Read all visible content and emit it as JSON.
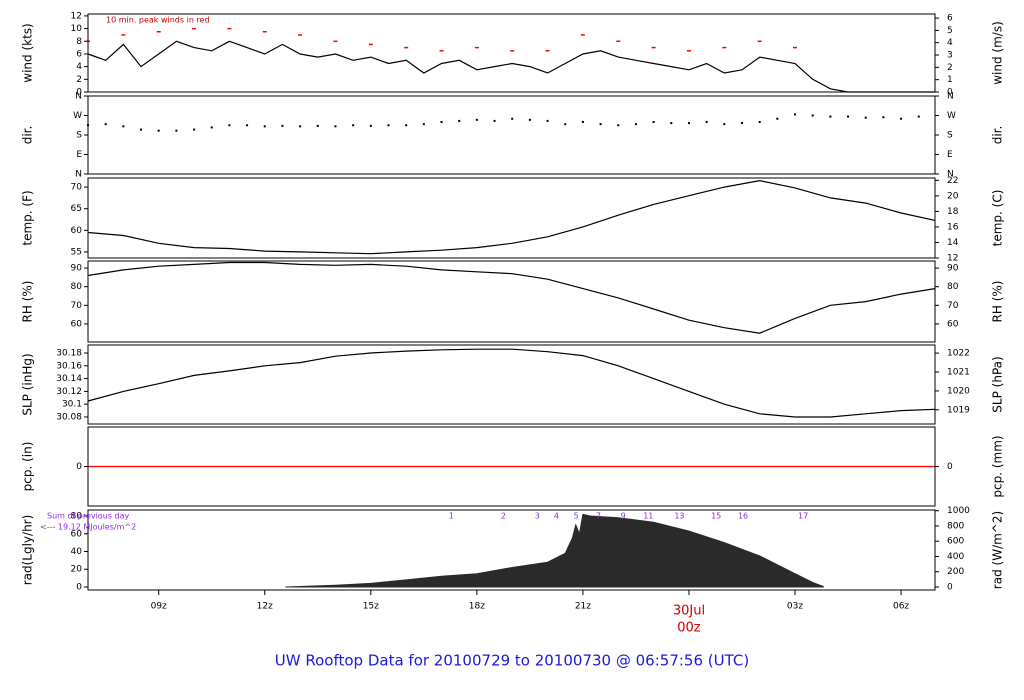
{
  "x_axis": {
    "xlim": [
      7,
      30.96
    ],
    "xticks": [
      {
        "value": 9,
        "label": "09z"
      },
      {
        "value": 12,
        "label": "12z"
      },
      {
        "value": 15,
        "label": "15z"
      },
      {
        "value": 18,
        "label": "18z"
      },
      {
        "value": 21,
        "label": "21z"
      },
      {
        "value": 27,
        "label": "03z"
      },
      {
        "value": 30,
        "label": "06z"
      }
    ],
    "day_marker": {
      "x": 24,
      "date": "30Jul",
      "time": "00z"
    }
  },
  "footer_title": "UW Rooftop Data for 20100729  to  20100730 @ 06:57:56  (UTC)",
  "chart_data": [
    {
      "type": "line",
      "ylabel": "wind (kts)",
      "y2label": "wind (m/s)",
      "ylim": [
        0,
        12.3
      ],
      "yticks": [
        0,
        2,
        4,
        6,
        8,
        10,
        12
      ],
      "y2lim": [
        0,
        6.33
      ],
      "y2ticks": [
        0,
        1,
        2,
        3,
        4,
        5,
        6
      ],
      "annotation": "10 min. peak winds in red",
      "series": [
        {
          "style": "line",
          "color": "#000000",
          "x": [
            7,
            7.5,
            8,
            8.5,
            9,
            9.5,
            10,
            10.5,
            11,
            11.5,
            12,
            12.5,
            13,
            13.5,
            14,
            14.5,
            15,
            15.5,
            16,
            16.5,
            17,
            17.5,
            18,
            18.5,
            19,
            19.5,
            20,
            20.5,
            21,
            21.5,
            22,
            22.5,
            23,
            23.5,
            24,
            24.5,
            25,
            25.5,
            26,
            26.5,
            27,
            27.5,
            28,
            28.5,
            29,
            29.5,
            30,
            30.5,
            30.96
          ],
          "values": [
            6,
            5,
            7.5,
            4,
            6,
            8,
            7,
            6.5,
            8,
            7,
            6,
            7.5,
            6,
            5.5,
            6,
            5,
            5.5,
            4.5,
            5,
            3,
            4.5,
            5,
            3.5,
            4,
            4.5,
            4,
            3,
            4.5,
            6,
            6.5,
            5.5,
            5,
            4.5,
            4,
            3.5,
            4.5,
            3,
            3.5,
            5.5,
            5,
            4.5,
            2,
            0.5,
            0,
            0,
            0,
            0,
            0,
            0
          ]
        },
        {
          "style": "peaks",
          "color": "#ff0000",
          "x": [
            7,
            8,
            9,
            10,
            11,
            12,
            13,
            14,
            15,
            16,
            17,
            18,
            19,
            20,
            21,
            22,
            23,
            24,
            25,
            26,
            27
          ],
          "values": [
            8,
            9,
            9.5,
            10,
            10,
            9.5,
            9,
            8,
            7.5,
            7,
            6.5,
            7,
            6.5,
            6.5,
            9,
            8,
            7,
            6.5,
            7,
            8,
            7
          ]
        }
      ]
    },
    {
      "type": "scatter",
      "ylabel": "dir.",
      "y2label": "dir.",
      "ylim": [
        0,
        360
      ],
      "yticks": [
        {
          "value": 0,
          "label": "N"
        },
        {
          "value": 90,
          "label": "E"
        },
        {
          "value": 180,
          "label": "S"
        },
        {
          "value": 270,
          "label": "W"
        },
        {
          "value": 360,
          "label": "N"
        }
      ],
      "y2lim": [
        0,
        360
      ],
      "y2ticks": [
        {
          "value": 0,
          "label": "N"
        },
        {
          "value": 90,
          "label": "E"
        },
        {
          "value": 180,
          "label": "S"
        },
        {
          "value": 270,
          "label": "W"
        },
        {
          "value": 360,
          "label": "N"
        }
      ],
      "series": [
        {
          "style": "dots",
          "color": "#000000",
          "x": [
            7,
            7.5,
            8,
            8.5,
            9,
            9.5,
            10,
            10.5,
            11,
            11.5,
            12,
            12.5,
            13,
            13.5,
            14,
            14.5,
            15,
            15.5,
            16,
            16.5,
            17,
            17.5,
            18,
            18.5,
            19,
            19.5,
            20,
            20.5,
            21,
            21.5,
            22,
            22.5,
            23,
            23.5,
            24,
            24.5,
            25,
            25.5,
            26,
            26.5,
            27,
            27.5,
            28,
            28.5,
            29,
            29.5,
            30,
            30.5
          ],
          "values": [
            225,
            230,
            220,
            205,
            200,
            200,
            205,
            215,
            225,
            225,
            220,
            222,
            220,
            222,
            220,
            225,
            222,
            225,
            225,
            230,
            240,
            245,
            250,
            245,
            255,
            250,
            245,
            230,
            240,
            230,
            225,
            230,
            240,
            235,
            235,
            240,
            230,
            235,
            240,
            255,
            275,
            270,
            265,
            265,
            260,
            262,
            255,
            265
          ]
        }
      ]
    },
    {
      "type": "line",
      "ylabel": "temp. (F)",
      "y2label": "temp. (C)",
      "ylim": [
        53.6,
        72.1
      ],
      "yticks": [
        55,
        60,
        65,
        70
      ],
      "y2lim": [
        12,
        22.3
      ],
      "y2ticks": [
        12,
        14,
        16,
        18,
        20,
        22
      ],
      "series": [
        {
          "style": "line",
          "color": "#000000",
          "x": [
            7,
            8,
            9,
            10,
            11,
            12,
            13,
            14,
            15,
            16,
            17,
            18,
            19,
            20,
            21,
            22,
            23,
            24,
            25,
            26,
            27,
            28,
            29,
            30,
            30.96
          ],
          "values": [
            59.5,
            58.8,
            57,
            56,
            55.8,
            55.2,
            55,
            54.8,
            54.6,
            55,
            55.4,
            56,
            57,
            58.5,
            60.8,
            63.5,
            66,
            68,
            70,
            71.5,
            69.8,
            67.5,
            66.3,
            64,
            62.3
          ]
        }
      ]
    },
    {
      "type": "line",
      "ylabel": "RH (%)",
      "y2label": "RH (%)",
      "ylim": [
        50.3,
        93.8
      ],
      "yticks": [
        60,
        70,
        80,
        90
      ],
      "y2lim": [
        50.3,
        93.8
      ],
      "y2ticks": [
        60,
        70,
        80,
        90
      ],
      "series": [
        {
          "style": "line",
          "color": "#000000",
          "x": [
            7,
            8,
            9,
            10,
            11,
            12,
            13,
            14,
            15,
            16,
            17,
            18,
            19,
            20,
            21,
            22,
            23,
            24,
            25,
            26,
            27,
            28,
            29,
            30,
            30.96
          ],
          "values": [
            86,
            89,
            91,
            92,
            93,
            93,
            92,
            91.5,
            92,
            91,
            89,
            88,
            87,
            84,
            79,
            74,
            68,
            62,
            58,
            55,
            63,
            70,
            72,
            76,
            79
          ]
        }
      ]
    },
    {
      "type": "line",
      "ylabel": "SLP (inHg)",
      "y2label": "SLP (hPa)",
      "ylim": [
        30.069,
        30.1925
      ],
      "yticks": [
        30.08,
        30.1,
        30.12,
        30.14,
        30.16,
        30.18
      ],
      "y2lim": [
        1018.25,
        1022.43
      ],
      "y2ticks": [
        1019,
        1020,
        1021,
        1022
      ],
      "series": [
        {
          "style": "line",
          "color": "#000000",
          "x": [
            7,
            8,
            9,
            10,
            11,
            12,
            13,
            14,
            15,
            16,
            17,
            18,
            19,
            20,
            21,
            22,
            23,
            24,
            25,
            26,
            27,
            28,
            29,
            30,
            30.96
          ],
          "values": [
            30.105,
            30.12,
            30.132,
            30.145,
            30.152,
            30.16,
            30.165,
            30.175,
            30.18,
            30.183,
            30.185,
            30.186,
            30.186,
            30.182,
            30.176,
            30.16,
            30.14,
            30.12,
            30.1,
            30.085,
            30.08,
            30.08,
            30.085,
            30.09,
            30.092
          ]
        }
      ]
    },
    {
      "type": "line",
      "ylabel": "pcp. (in)",
      "y2label": "pcp. (mm)",
      "ylim": [
        -1,
        1
      ],
      "yticks": [
        0
      ],
      "y2lim": [
        -25.4,
        25.4
      ],
      "y2ticks": [
        0
      ],
      "series": [
        {
          "style": "line",
          "color": "#ff0000",
          "x": [
            7,
            30.96
          ],
          "values": [
            0,
            0
          ]
        }
      ]
    },
    {
      "type": "area",
      "ylabel": "rad(Lgly/hr)",
      "y2label": "rad (W/m^2)",
      "ylim": [
        -3.4,
        86.8
      ],
      "yticks": [
        0,
        20,
        40,
        60,
        80
      ],
      "y2lim": [
        -39.5,
        1009.5
      ],
      "y2ticks": [
        0,
        200,
        400,
        600,
        800,
        1000
      ],
      "note_lines": [
        "Sum of previous day",
        "<--- 19.12 MJoules/m^2"
      ],
      "hour_markers": [
        {
          "x": 17.28,
          "label": "1"
        },
        {
          "x": 18.75,
          "label": "2"
        },
        {
          "x": 19.71,
          "label": "3"
        },
        {
          "x": 20.25,
          "label": "4"
        },
        {
          "x": 20.81,
          "label": "5"
        },
        {
          "x": 21.44,
          "label": "7"
        },
        {
          "x": 22.14,
          "label": "9"
        },
        {
          "x": 22.85,
          "label": "11"
        },
        {
          "x": 23.73,
          "label": "13"
        },
        {
          "x": 24.77,
          "label": "15"
        },
        {
          "x": 25.53,
          "label": "16"
        },
        {
          "x": 27.23,
          "label": "17"
        }
      ],
      "series": [
        {
          "style": "area",
          "color": "#2a2a2a",
          "x": [
            12.6,
            13,
            14,
            15,
            16,
            17,
            18,
            19,
            20,
            20.5,
            20.7,
            20.8,
            20.9,
            21,
            21.2,
            22,
            23,
            24,
            25,
            26,
            27,
            27.5,
            27.8
          ],
          "values": [
            0,
            0.5,
            2,
            4,
            8,
            12,
            15,
            22,
            28,
            38,
            55,
            70,
            60,
            82,
            80,
            78,
            73,
            63,
            50,
            35,
            15,
            5,
            0.5
          ]
        }
      ]
    }
  ]
}
